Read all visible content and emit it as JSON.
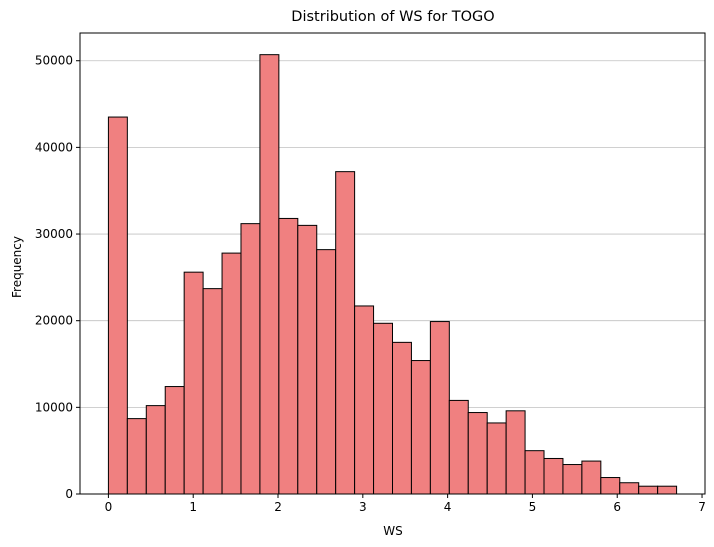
{
  "chart_data": {
    "type": "bar",
    "title": "Distribution of WS for TOGO",
    "xlabel": "WS",
    "ylabel": "Frequency",
    "xlim": [
      -0.335,
      7.035
    ],
    "ylim": [
      0,
      53200
    ],
    "grid": "horizontal",
    "bar_color": "#F08080",
    "edge_color": "#000000",
    "grid_color": "#c0c0c0",
    "bin_edges": [
      0.0,
      0.2233,
      0.4467,
      0.67,
      0.8933,
      1.1167,
      1.34,
      1.5633,
      1.7867,
      2.01,
      2.2333,
      2.4567,
      2.68,
      2.9033,
      3.1267,
      3.35,
      3.5733,
      3.7967,
      4.02,
      4.2433,
      4.4667,
      4.69,
      4.9133,
      5.1367,
      5.36,
      5.5833,
      5.8067,
      6.03,
      6.2533,
      6.4767,
      6.7
    ],
    "counts": [
      43500,
      8700,
      10200,
      12400,
      25600,
      23700,
      27800,
      31200,
      50700,
      31800,
      31000,
      28200,
      37200,
      21700,
      19700,
      17500,
      15400,
      19900,
      10800,
      9400,
      8200,
      9600,
      5000,
      4100,
      3400,
      3800,
      1900,
      1300,
      900,
      900
    ],
    "xticks": [
      0,
      1,
      2,
      3,
      4,
      5,
      6,
      7
    ],
    "xtick_labels": [
      "0",
      "1",
      "2",
      "3",
      "4",
      "5",
      "6",
      "7"
    ],
    "yticks": [
      0,
      10000,
      20000,
      30000,
      40000,
      50000
    ],
    "ytick_labels": [
      "0",
      "10000",
      "20000",
      "30000",
      "40000",
      "50000"
    ]
  }
}
